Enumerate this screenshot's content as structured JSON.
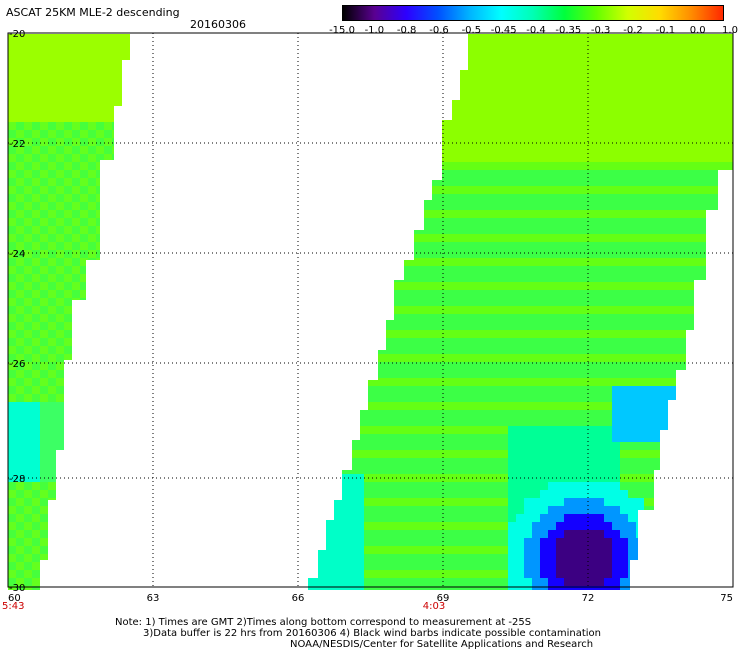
{
  "header": {
    "title": "ASCAT 25KM MLE-2 descending",
    "date": "20160306"
  },
  "colorbar": {
    "labels": [
      "-15.0",
      "-1.0",
      "-0.8",
      "-0.6",
      "-0.5",
      "-0.45",
      "-0.4",
      "-0.35",
      "-0.3",
      "-0.2",
      "-0.1",
      "0.0",
      "1.0"
    ],
    "colors": [
      "#000000",
      "#5a0091",
      "#2d00ff",
      "#0050ff",
      "#00b4ff",
      "#00ffff",
      "#00ffb4",
      "#00ff3c",
      "#64ff00",
      "#d2ff00",
      "#ffdc00",
      "#ff8c00",
      "#ff2800"
    ]
  },
  "axes": {
    "x_labels": [
      "60",
      "63",
      "66",
      "69",
      "72",
      "75"
    ],
    "y_labels": [
      "-20",
      "-22",
      "-24",
      "-26",
      "-28",
      "-30"
    ],
    "times": [
      "5:43",
      "4:03"
    ],
    "time_color": "#cc0000"
  },
  "notes": {
    "line1": "Note: 1) Times are GMT 2)Times along bottom correspond to measurement at -25S",
    "line2": "3)Data buffer is 22 hrs from 20160306 4) Black wind barbs indicate possible contamination",
    "line3": "NOAA/NESDIS/Center for Satellite Applications and Research"
  }
}
